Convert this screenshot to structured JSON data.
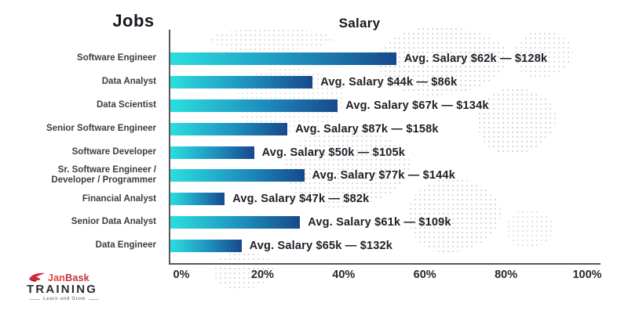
{
  "titles": {
    "jobs": "Jobs",
    "salary": "Salary"
  },
  "chart_data": {
    "type": "bar",
    "orientation": "horizontal",
    "title_left": "Jobs",
    "title_top": "Salary",
    "xlim": [
      0,
      100
    ],
    "grid": false,
    "x_ticks": [
      "0%",
      "20%",
      "40%",
      "60%",
      "80%",
      "100%"
    ],
    "bar_gradient": {
      "start": "#2ADFDE",
      "mid": "#1E8FBE",
      "end": "#17498C"
    },
    "rows": [
      {
        "job": "Software Engineer",
        "value_pct": 54,
        "label": "Avg. Salary $62k — $128k",
        "avg_min_k": 62,
        "avg_max_k": 128
      },
      {
        "job": "Data Analyst",
        "value_pct": 34,
        "label": "Avg. Salary $44k — $86k",
        "avg_min_k": 44,
        "avg_max_k": 86
      },
      {
        "job": "Data Scientist",
        "value_pct": 40,
        "label": "Avg. Salary $67k — $134k",
        "avg_min_k": 67,
        "avg_max_k": 134
      },
      {
        "job": "Senior Software Engineer",
        "value_pct": 28,
        "label": "Avg. Salary $87k — $158k",
        "avg_min_k": 87,
        "avg_max_k": 158
      },
      {
        "job": "Software Developer",
        "value_pct": 20,
        "label": "Avg. Salary $50k — $105k",
        "avg_min_k": 50,
        "avg_max_k": 105
      },
      {
        "job": "Sr. Software Engineer /\nDeveloper / Programmer",
        "value_pct": 32,
        "label": "Avg. Salary $77k — $144k",
        "avg_min_k": 77,
        "avg_max_k": 144
      },
      {
        "job": "Financial Analyst",
        "value_pct": 13,
        "label": "Avg. Salary $47k — $82k",
        "avg_min_k": 47,
        "avg_max_k": 82
      },
      {
        "job": "Senior Data Analyst",
        "value_pct": 31,
        "label": "Avg. Salary $61k — $109k",
        "avg_min_k": 61,
        "avg_max_k": 109
      },
      {
        "job": "Data Engineer",
        "value_pct": 17,
        "label": "Avg. Salary $65k — $132k",
        "avg_min_k": 65,
        "avg_max_k": 132
      }
    ]
  },
  "logo": {
    "jan": "Jan",
    "bask": "Bask",
    "training": "TRAINING",
    "tagline": "Learn and Grow",
    "jan_color": "#E8403F",
    "bask_color": "#C2333E",
    "training_color": "#2d2d30",
    "icon_color": "#D7263D"
  }
}
